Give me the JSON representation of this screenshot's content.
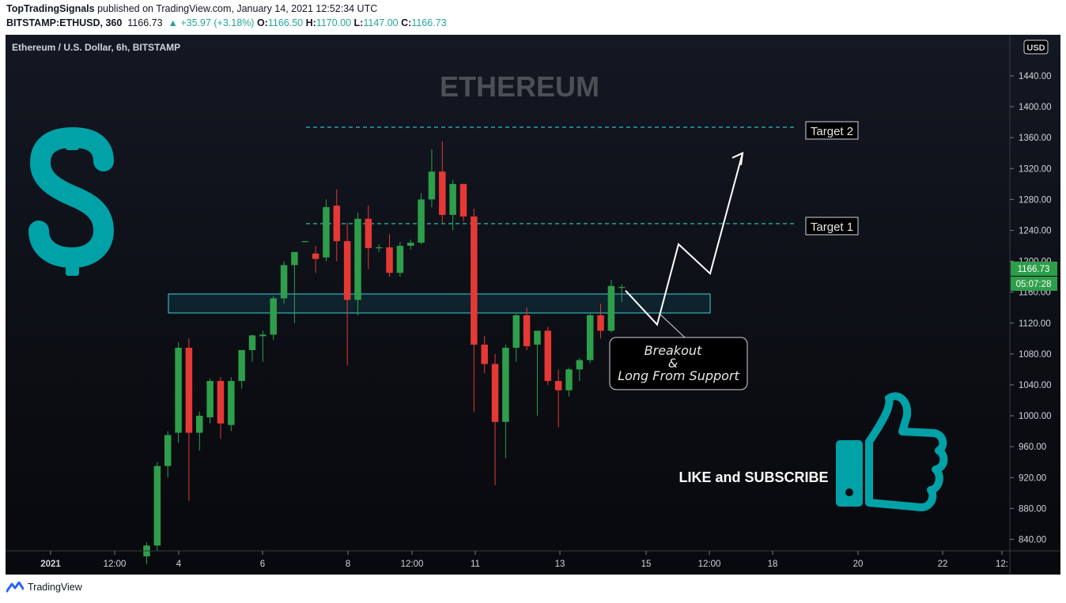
{
  "header": {
    "author": "TopTradingSignals",
    "published": "published on TradingView.com, January 14, 2021 12:52:34 UTC",
    "symbol": "BITSTAMP:ETHUSD, 360",
    "last": "1166.73",
    "change": "▲ +35.97 (+3.18%)",
    "o_label": "O:",
    "o_value": "1166.50",
    "h_label": "H:",
    "h_value": "1170.00",
    "l_label": "L:",
    "l_value": "1147.00",
    "c_label": "C:",
    "c_value": "1166.73"
  },
  "chart": {
    "legend_title": "Ethereum / U.S. Dollar, 6h, BITSTAMP",
    "watermark": "ETHEREUM",
    "currency": "USD",
    "price_badge": "1166.73",
    "countdown_badge": "05:07:28",
    "target2_label": "Target 2",
    "target1_label": "Target 1",
    "callout_line1": "Breakout",
    "callout_line2": "&",
    "callout_line3": "Long From Support",
    "cta_text": "LIKE and SUBSCRIBE"
  },
  "footer": {
    "brand": "TradingView"
  },
  "colors": {
    "up": "#26a69a",
    "candle_up": "#2e9e4a",
    "candle_down": "#e53935",
    "teal": "#00a1a7",
    "level": "#2bbfbf",
    "zone_border": "#3ad0d6",
    "axis_text": "#d1d4dc",
    "badge": "#2e9e4a"
  },
  "icons": {
    "dollar": "dollar-sign-icon",
    "thumbs_up": "thumbs-up-icon",
    "logo": "tradingview-logo-icon"
  },
  "chart_data": {
    "type": "candlestick",
    "y_axis": {
      "label": "USD",
      "ticks": [
        840,
        880,
        920,
        960,
        1000,
        1040,
        1080,
        1120,
        1160,
        1200,
        1240,
        1280,
        1320,
        1360,
        1400,
        1440
      ]
    },
    "x_axis": {
      "ticks": [
        "2021",
        "12:00",
        "4",
        "6",
        "8",
        "12:00",
        "11",
        "13",
        "15",
        "12:00",
        "18",
        "20",
        "22",
        "12:"
      ]
    },
    "levels": {
      "target1": 1226,
      "target2": 1350,
      "support_zone": [
        1110,
        1136
      ]
    },
    "projection_path": [
      1162,
      1118,
      1222,
      1184,
      1340
    ],
    "last_price": 1166.73,
    "candles": [
      [
        818,
        836,
        808,
        832
      ],
      [
        832,
        940,
        825,
        935
      ],
      [
        935,
        980,
        920,
        975
      ],
      [
        978,
        1095,
        965,
        1088
      ],
      [
        1088,
        1100,
        890,
        978
      ],
      [
        978,
        1005,
        955,
        1000
      ],
      [
        998,
        1048,
        990,
        1045
      ],
      [
        1045,
        1050,
        970,
        990
      ],
      [
        988,
        1050,
        980,
        1045
      ],
      [
        1045,
        1085,
        1035,
        1085
      ],
      [
        1085,
        1105,
        1070,
        1104
      ],
      [
        1103,
        1110,
        1070,
        1105
      ],
      [
        1105,
        1155,
        1098,
        1152
      ],
      [
        1152,
        1200,
        1145,
        1195
      ],
      [
        1195,
        1212,
        1120,
        1212
      ],
      [
        1226,
        1226,
        1225,
        1226
      ],
      [
        1210,
        1220,
        1185,
        1203
      ],
      [
        1205,
        1280,
        1200,
        1270
      ],
      [
        1272,
        1293,
        1200,
        1226
      ],
      [
        1226,
        1250,
        1065,
        1150
      ],
      [
        1150,
        1263,
        1130,
        1255
      ],
      [
        1255,
        1272,
        1190,
        1217
      ],
      [
        1217,
        1222,
        1212,
        1218
      ],
      [
        1218,
        1235,
        1180,
        1185
      ],
      [
        1185,
        1225,
        1180,
        1220
      ],
      [
        1220,
        1228,
        1215,
        1224
      ],
      [
        1224,
        1288,
        1222,
        1280
      ],
      [
        1280,
        1345,
        1270,
        1316
      ],
      [
        1316,
        1355,
        1250,
        1260
      ],
      [
        1260,
        1305,
        1240,
        1300
      ],
      [
        1300,
        1300,
        1252,
        1258
      ],
      [
        1258,
        1268,
        1005,
        1092
      ],
      [
        1092,
        1103,
        1055,
        1067
      ],
      [
        1067,
        1080,
        910,
        992
      ],
      [
        992,
        1092,
        945,
        1088
      ],
      [
        1088,
        1132,
        1070,
        1130
      ],
      [
        1130,
        1140,
        1085,
        1090
      ],
      [
        1092,
        1110,
        1000,
        1110
      ],
      [
        1110,
        1115,
        1040,
        1045
      ],
      [
        1045,
        1060,
        985,
        1033
      ],
      [
        1033,
        1062,
        1025,
        1060
      ],
      [
        1060,
        1075,
        1045,
        1072
      ],
      [
        1072,
        1132,
        1068,
        1130
      ],
      [
        1130,
        1145,
        1100,
        1110
      ],
      [
        1110,
        1176,
        1108,
        1168
      ],
      [
        1166.5,
        1170,
        1147,
        1166.73
      ]
    ]
  }
}
